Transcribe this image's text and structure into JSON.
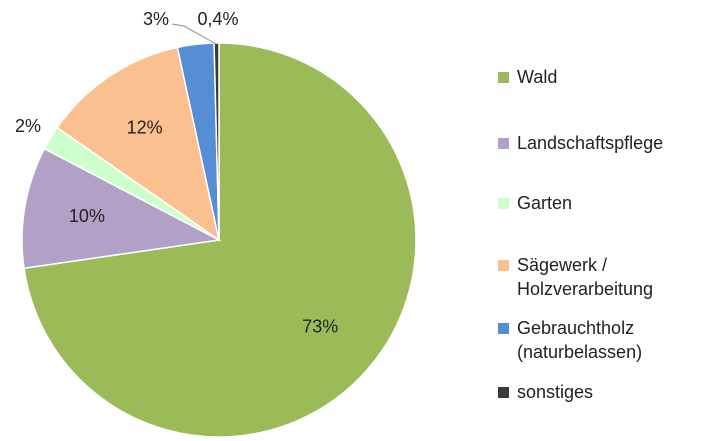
{
  "chart_data": {
    "type": "pie",
    "series": [
      {
        "name": "Wald",
        "color": "#9bbb59",
        "values": [
          73
        ],
        "value_labels": [
          "73%"
        ]
      },
      {
        "name": "Landschaftspflege",
        "color": "#b2a1c7",
        "values": [
          10
        ],
        "value_labels": [
          "10%"
        ]
      },
      {
        "name": "Garten",
        "color": "#ccffcc",
        "values": [
          2
        ],
        "value_labels": [
          "2%"
        ]
      },
      {
        "name": "Sägewerk / Holzverarbeitung",
        "color": "#fac090",
        "values": [
          12
        ],
        "value_labels": [
          "12%"
        ]
      },
      {
        "name": "Gebrauchtholz (naturbelassen)",
        "color": "#558ed5",
        "values": [
          3
        ],
        "value_labels": [
          "3%"
        ]
      },
      {
        "name": "sonstiges",
        "color": "#3a3a3a",
        "values": [
          0.4
        ],
        "value_labels": [
          "0,4%"
        ]
      }
    ],
    "legend": "right"
  }
}
